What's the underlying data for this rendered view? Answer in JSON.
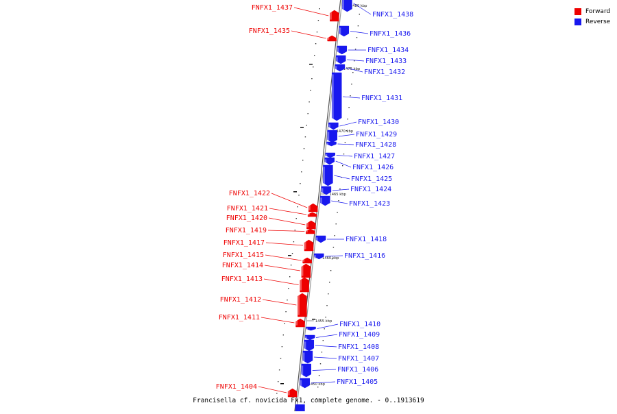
{
  "colors": {
    "forward": "#ee0000",
    "reverse": "#1818ee",
    "backbone": "#888888"
  },
  "legend": [
    {
      "label": "Forward",
      "color": "#ee0000"
    },
    {
      "label": "Reverse",
      "color": "#1818ee"
    }
  ],
  "genome_title": "Francisella cf. novicida Fx1, complete genome. - 0..1913619",
  "scale_ticks": [
    "1480 kbp",
    "1475 kbp",
    "1470 kbp",
    "1465 kbp",
    "1460 kbp",
    "1455 kbp",
    "1450 kbp"
  ],
  "genes": [
    {
      "name": "FNFX1_1438",
      "strand": "reverse"
    },
    {
      "name": "FNFX1_1437",
      "strand": "forward"
    },
    {
      "name": "FNFX1_1436",
      "strand": "reverse"
    },
    {
      "name": "FNFX1_1435",
      "strand": "forward"
    },
    {
      "name": "FNFX1_1434",
      "strand": "reverse"
    },
    {
      "name": "FNFX1_1433",
      "strand": "reverse"
    },
    {
      "name": "FNFX1_1432",
      "strand": "reverse"
    },
    {
      "name": "FNFX1_1431",
      "strand": "reverse"
    },
    {
      "name": "FNFX1_1430",
      "strand": "reverse"
    },
    {
      "name": "FNFX1_1429",
      "strand": "reverse"
    },
    {
      "name": "FNFX1_1428",
      "strand": "reverse"
    },
    {
      "name": "FNFX1_1427",
      "strand": "reverse"
    },
    {
      "name": "FNFX1_1426",
      "strand": "reverse"
    },
    {
      "name": "FNFX1_1425",
      "strand": "reverse"
    },
    {
      "name": "FNFX1_1424",
      "strand": "reverse"
    },
    {
      "name": "FNFX1_1423",
      "strand": "reverse"
    },
    {
      "name": "FNFX1_1422",
      "strand": "forward"
    },
    {
      "name": "FNFX1_1421",
      "strand": "forward"
    },
    {
      "name": "FNFX1_1420",
      "strand": "forward"
    },
    {
      "name": "FNFX1_1419",
      "strand": "forward"
    },
    {
      "name": "FNFX1_1418",
      "strand": "reverse"
    },
    {
      "name": "FNFX1_1417",
      "strand": "forward"
    },
    {
      "name": "FNFX1_1416",
      "strand": "reverse"
    },
    {
      "name": "FNFX1_1415",
      "strand": "forward"
    },
    {
      "name": "FNFX1_1414",
      "strand": "forward"
    },
    {
      "name": "FNFX1_1413",
      "strand": "forward"
    },
    {
      "name": "FNFX1_1412",
      "strand": "forward"
    },
    {
      "name": "FNFX1_1411",
      "strand": "forward"
    },
    {
      "name": "FNFX1_1410",
      "strand": "reverse"
    },
    {
      "name": "FNFX1_1409",
      "strand": "reverse"
    },
    {
      "name": "FNFX1_1408",
      "strand": "reverse"
    },
    {
      "name": "FNFX1_1407",
      "strand": "reverse"
    },
    {
      "name": "FNFX1_1406",
      "strand": "reverse"
    },
    {
      "name": "FNFX1_1405",
      "strand": "reverse"
    },
    {
      "name": "FNFX1_1404",
      "strand": "forward"
    }
  ]
}
